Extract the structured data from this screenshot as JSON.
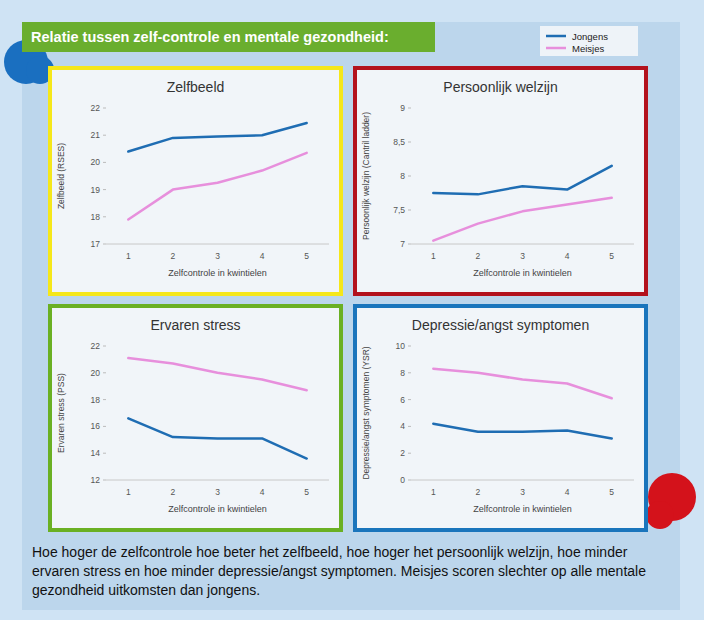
{
  "header": {
    "title": "Relatie tussen zelf-controle en mentale gezondheid:"
  },
  "chart_data": [
    {
      "type": "line",
      "title": "Zelfbeeld",
      "x_label": "Zelfcontrole in kwintielen",
      "y_label": "Zelfbeeld (RSES)",
      "categories": [
        "1",
        "2",
        "3",
        "4",
        "5"
      ],
      "series": [
        {
          "name": "Jongens",
          "color": "#1f6db3",
          "values": [
            20.4,
            20.9,
            20.95,
            21.0,
            21.45
          ]
        },
        {
          "name": "Meisjes",
          "color": "#e78fdc",
          "values": [
            17.9,
            19.0,
            19.25,
            19.7,
            20.35
          ]
        }
      ],
      "ylim": [
        17,
        22
      ],
      "yticks": [
        17,
        18,
        19,
        20,
        21,
        22
      ],
      "grid": false,
      "legend": "top-right"
    },
    {
      "type": "line",
      "title": "Persoonlijk welzijn",
      "x_label": "Zelfcontrole in kwintielen",
      "y_label": "Persoonlijk welzijn (Cantril ladder)",
      "categories": [
        "1",
        "2",
        "3",
        "4",
        "5"
      ],
      "series": [
        {
          "name": "Jongens",
          "color": "#1f6db3",
          "values": [
            7.75,
            7.73,
            7.85,
            7.8,
            8.15
          ]
        },
        {
          "name": "Meisjes",
          "color": "#e78fdc",
          "values": [
            7.05,
            7.3,
            7.48,
            7.58,
            7.68
          ]
        }
      ],
      "ylim": [
        7,
        9
      ],
      "yticks": [
        7,
        {
          "value": 7.5,
          "label": "7,5"
        },
        8,
        {
          "value": 8.5,
          "label": "8,5"
        },
        9
      ],
      "grid": false
    },
    {
      "type": "line",
      "title": "Ervaren stress",
      "x_label": "Zelfcontrole in kwintielen",
      "y_label": "Ervaren stress (PSS)",
      "categories": [
        "1",
        "2",
        "3",
        "4",
        "5"
      ],
      "series": [
        {
          "name": "Jongens",
          "color": "#1f6db3",
          "values": [
            16.6,
            15.2,
            15.1,
            15.1,
            13.6
          ]
        },
        {
          "name": "Meisjes",
          "color": "#e78fdc",
          "values": [
            21.1,
            20.7,
            20.0,
            19.5,
            18.7
          ]
        }
      ],
      "ylim": [
        12,
        22
      ],
      "yticks": [
        12,
        14,
        16,
        18,
        20,
        22
      ],
      "grid": false
    },
    {
      "type": "line",
      "title": "Depressie/angst symptomen",
      "x_label": "Zelfcontrole in kwintielen",
      "y_label": "Depressie/angst symptomen (YSR)",
      "categories": [
        "1",
        "2",
        "3",
        "4",
        "5"
      ],
      "series": [
        {
          "name": "Jongens",
          "color": "#1f6db3",
          "values": [
            4.2,
            3.6,
            3.6,
            3.7,
            3.1
          ]
        },
        {
          "name": "Meisjes",
          "color": "#e78fdc",
          "values": [
            8.3,
            8.0,
            7.5,
            7.2,
            6.1
          ]
        }
      ],
      "ylim": [
        0,
        10
      ],
      "yticks": [
        0,
        2,
        4,
        6,
        8,
        10
      ],
      "grid": false
    }
  ],
  "caption": "Hoe hoger de zelfcontrole hoe beter het zelfbeeld, hoe hoger het persoonlijk welzijn, hoe minder ervaren stress en hoe minder depressie/angst symptomen. Meisjes scoren slechter op alle mentale gezondheid uitkomsten dan jongens."
}
